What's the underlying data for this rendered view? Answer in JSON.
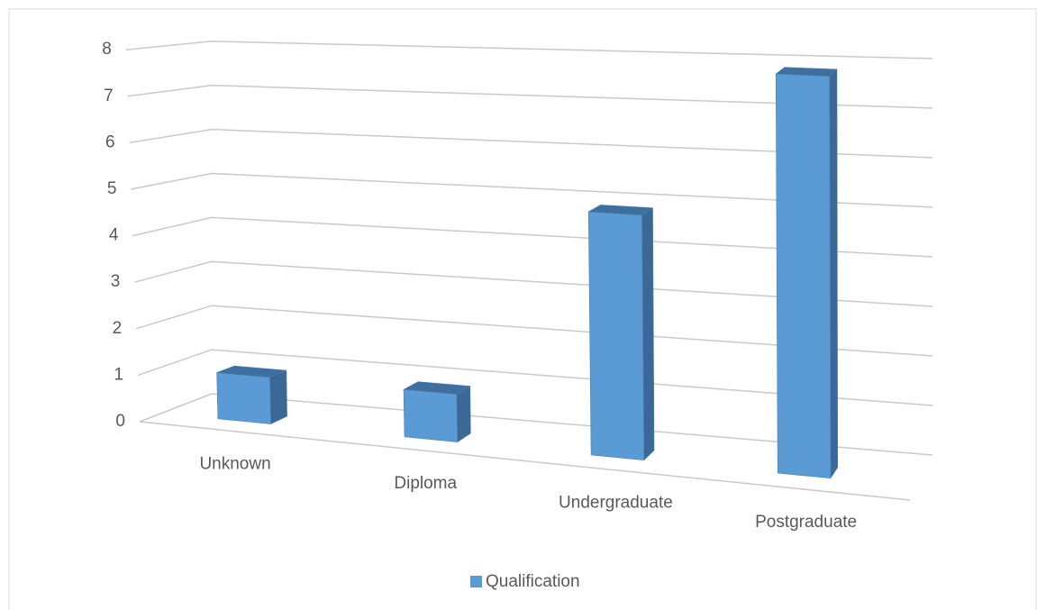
{
  "chart_data": {
    "type": "bar",
    "categories": [
      "Unknown",
      "Diploma",
      "Undergraduate",
      "Postgraduate"
    ],
    "series": [
      {
        "name": "Qualification",
        "color": "#5b9bd5",
        "values": [
          1,
          1,
          5,
          8
        ]
      }
    ],
    "ylim": [
      0,
      8
    ],
    "yticks": [
      0,
      1,
      2,
      3,
      4,
      5,
      6,
      7,
      8
    ],
    "grid": true,
    "legend": "bottom"
  }
}
